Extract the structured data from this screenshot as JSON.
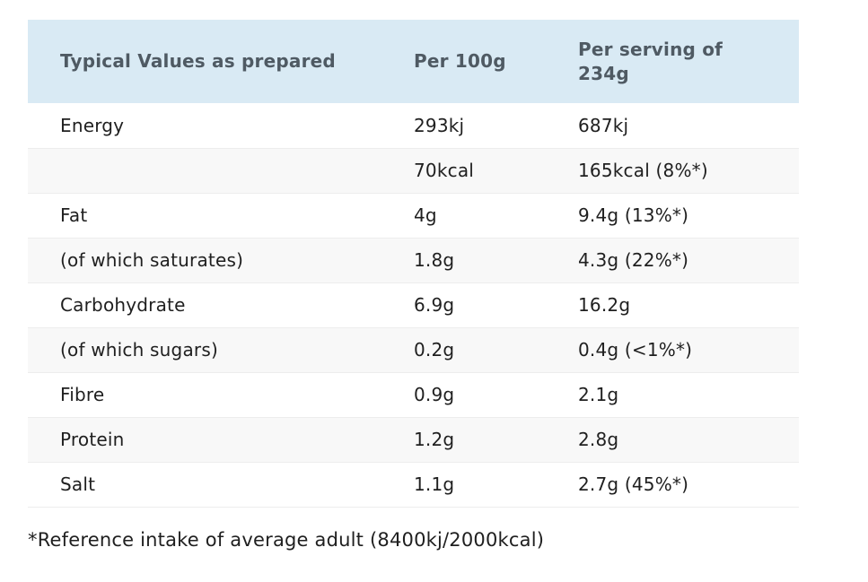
{
  "table": {
    "headers": {
      "col1": "Typical Values as prepared",
      "col2": "Per 100g",
      "col3": "Per serving of 234g"
    },
    "rows": [
      {
        "label": "Energy",
        "per_100g": "293kj",
        "per_serving": "687kj"
      },
      {
        "label": "",
        "per_100g": "70kcal",
        "per_serving": "165kcal (8%*)"
      },
      {
        "label": "Fat",
        "per_100g": "4g",
        "per_serving": "9.4g (13%*)"
      },
      {
        "label": "(of which saturates)",
        "per_100g": "1.8g",
        "per_serving": "4.3g (22%*)"
      },
      {
        "label": "Carbohydrate",
        "per_100g": "6.9g",
        "per_serving": "16.2g"
      },
      {
        "label": "(of which sugars)",
        "per_100g": "0.2g",
        "per_serving": "0.4g (<1%*)"
      },
      {
        "label": "Fibre",
        "per_100g": "0.9g",
        "per_serving": "2.1g"
      },
      {
        "label": "Protein",
        "per_100g": "1.2g",
        "per_serving": "2.8g"
      },
      {
        "label": "Salt",
        "per_100g": "1.1g",
        "per_serving": "2.7g (45%*)"
      }
    ]
  },
  "footnote": "*Reference intake of average adult (8400kj/2000kcal)",
  "colors": {
    "header_bg": "#d9eaf4",
    "header_text": "#4f5a63",
    "body_text": "#1f1f1f",
    "stripe_bg": "#f8f8f8",
    "row_border": "#ededed"
  }
}
